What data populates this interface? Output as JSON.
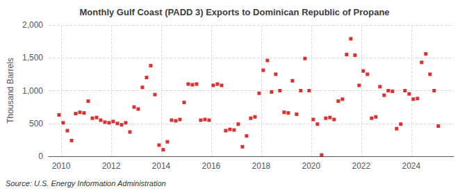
{
  "chart_data": {
    "type": "scatter",
    "title": "Monthly Gulf Coast (PADD 3) Exports to Dominican Republic of Propane",
    "ylabel": "Thousand Barrels",
    "source": "Source: U.S. Energy Information Administration",
    "color": "#cc0000",
    "marker": "square",
    "grid": true,
    "xlim": [
      2009.5,
      2025.7
    ],
    "xticks": [
      2010,
      2012,
      2014,
      2016,
      2018,
      2020,
      2022,
      2024
    ],
    "ylim": [
      0,
      2000
    ],
    "yticks": [
      0,
      500,
      {
        "value": 1000,
        "label": "1,000"
      },
      {
        "value": 1500,
        "label": "1,500"
      },
      {
        "value": 2000,
        "label": "2,000"
      }
    ],
    "x": [
      2009.917,
      2010.083,
      2010.25,
      2010.417,
      2010.583,
      2010.75,
      2010.917,
      2011.083,
      2011.25,
      2011.417,
      2011.583,
      2011.75,
      2011.917,
      2012.083,
      2012.25,
      2012.417,
      2012.583,
      2012.75,
      2012.917,
      2013.083,
      2013.25,
      2013.417,
      2013.583,
      2013.75,
      2013.917,
      2014.083,
      2014.25,
      2014.417,
      2014.583,
      2014.75,
      2014.917,
      2015.083,
      2015.25,
      2015.417,
      2015.583,
      2015.75,
      2015.917,
      2016.083,
      2016.25,
      2016.417,
      2016.583,
      2016.75,
      2016.917,
      2017.083,
      2017.25,
      2017.417,
      2017.583,
      2017.75,
      2017.917,
      2018.083,
      2018.25,
      2018.417,
      2018.583,
      2018.75,
      2018.917,
      2019.083,
      2019.25,
      2019.417,
      2019.583,
      2019.75,
      2019.917,
      2020.083,
      2020.25,
      2020.417,
      2020.583,
      2020.75,
      2020.917,
      2021.083,
      2021.25,
      2021.417,
      2021.583,
      2021.75,
      2021.917,
      2022.083,
      2022.25,
      2022.417,
      2022.583,
      2022.75,
      2022.917,
      2023.083,
      2023.25,
      2023.417,
      2023.583,
      2023.75,
      2023.917,
      2024.083,
      2024.25,
      2024.417,
      2024.583,
      2024.75,
      2024.917,
      2025.083
    ],
    "values": [
      630,
      510,
      390,
      240,
      650,
      670,
      660,
      840,
      580,
      590,
      550,
      520,
      510,
      530,
      500,
      480,
      510,
      370,
      750,
      720,
      1050,
      1200,
      1380,
      940,
      170,
      100,
      220,
      550,
      540,
      560,
      820,
      1100,
      1090,
      1100,
      550,
      560,
      550,
      1080,
      1100,
      1080,
      390,
      410,
      400,
      490,
      145,
      310,
      580,
      600,
      960,
      1310,
      1460,
      980,
      1250,
      1000,
      670,
      660,
      1150,
      640,
      1000,
      1490,
      1000,
      560,
      490,
      20,
      580,
      590,
      560,
      840,
      870,
      1550,
      1790,
      1540,
      1080,
      1300,
      1250,
      580,
      600,
      1060,
      930,
      1000,
      990,
      420,
      490,
      1000,
      950,
      870,
      880,
      1430,
      1560,
      1250,
      1000,
      460
    ]
  }
}
